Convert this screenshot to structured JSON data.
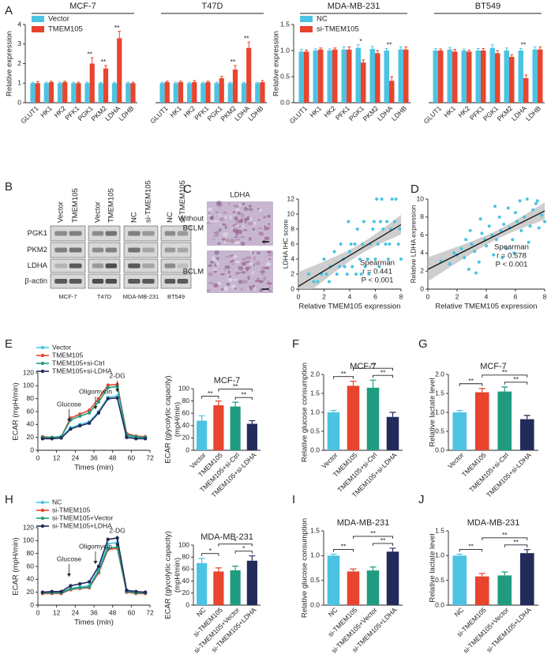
{
  "panel_labels": [
    "A",
    "B",
    "C",
    "D",
    "E",
    "F",
    "G",
    "H",
    "I",
    "J"
  ],
  "western_blot": {
    "columns": [
      "Vector",
      "TMEM105",
      "Vector",
      "TMEM105",
      "NC",
      "si-TMEM105",
      "NC",
      "si-TMEM105"
    ],
    "rows": [
      "PGK1",
      "PKM2",
      "LDHA",
      "β-actin"
    ],
    "cell_lines": [
      "MCF-7",
      "T47D",
      "MDA-MB-231",
      "BT549"
    ]
  },
  "ihc": {
    "title": "LDHA",
    "rows": [
      [
        "Without",
        "BCLM"
      ],
      [
        "BCLM"
      ]
    ]
  },
  "chart_data": [
    {
      "type": "bar",
      "group_labels": [
        "MCF-7",
        "T47D"
      ],
      "categories": [
        "GLUT1",
        "HK1",
        "HK2",
        "PFK1",
        "PGK1",
        "PKM2",
        "LDHA",
        "LDHB",
        "GLUT1",
        "HK1",
        "HK2",
        "PFK1",
        "PGK1",
        "PKM2",
        "LDHA",
        "LDHB"
      ],
      "ylabel": "Relative expression",
      "ylim": [
        0,
        4
      ],
      "yticks": [
        0,
        1,
        2,
        3,
        4
      ],
      "series": [
        {
          "name": "Vector",
          "color": "#4cc3e2",
          "values": [
            1,
            1,
            1,
            1,
            1,
            1,
            1,
            1,
            1,
            1,
            1,
            1,
            1,
            1,
            1,
            1
          ],
          "errors": [
            0.05,
            0.05,
            0.05,
            0.05,
            0.05,
            0.05,
            0.05,
            0.05,
            0.05,
            0.05,
            0.05,
            0.05,
            0.05,
            0.05,
            0.05,
            0.05
          ]
        },
        {
          "name": "TMEM105",
          "color": "#e8442e",
          "values": [
            1.0,
            1.05,
            1.05,
            1.0,
            2.0,
            1.75,
            3.3,
            1.0,
            1.05,
            1.05,
            1.05,
            1.05,
            1.25,
            1.7,
            2.8,
            1.05
          ],
          "errors": [
            0.08,
            0.05,
            0.05,
            0.05,
            0.3,
            0.15,
            0.35,
            0.05,
            0.05,
            0.05,
            0.08,
            0.05,
            0.1,
            0.2,
            0.3,
            0.08
          ]
        }
      ],
      "significance": [
        null,
        null,
        null,
        null,
        "**",
        "**",
        "**",
        null,
        null,
        null,
        null,
        null,
        null,
        "**",
        "**",
        null
      ]
    },
    {
      "type": "bar",
      "group_labels": [
        "MDA-MB-231",
        "BT549"
      ],
      "categories": [
        "GLUT1",
        "HK1",
        "HK2",
        "PFK1",
        "PGK1",
        "PKM2",
        "LDHA",
        "LDHB",
        "GLUT1",
        "HK1",
        "HK2",
        "PFK1",
        "PGK1",
        "PKM2",
        "LDHA",
        "LDHB"
      ],
      "ylabel": "Relative expression",
      "ylim": [
        0,
        1.5
      ],
      "yticks": [
        {
          "value": 0,
          "label": "0.0"
        },
        {
          "value": 0.5,
          "label": "0.5"
        },
        {
          "value": 1,
          "label": "1.0"
        },
        {
          "value": 1.5,
          "label": "1.5"
        }
      ],
      "series": [
        {
          "name": "NC",
          "color": "#4cc3e2",
          "values": [
            0.98,
            1.0,
            1.0,
            1.02,
            1.05,
            1.03,
            1.0,
            1.02,
            1.0,
            1.02,
            1.0,
            1.0,
            1.05,
            1.0,
            1.0,
            1.02
          ],
          "errors": [
            0.04,
            0.03,
            0.03,
            0.05,
            0.06,
            0.05,
            0.04,
            0.05,
            0.04,
            0.04,
            0.03,
            0.04,
            0.06,
            0.05,
            0.04,
            0.05
          ]
        },
        {
          "name": "si-TMEM105",
          "color": "#e8442e",
          "values": [
            0.98,
            1.02,
            1.02,
            1.02,
            0.77,
            0.95,
            0.42,
            1.02,
            1.0,
            0.98,
            0.98,
            1.0,
            0.95,
            0.88,
            0.47,
            1.02
          ],
          "errors": [
            0.03,
            0.03,
            0.03,
            0.05,
            0.05,
            0.05,
            0.08,
            0.05,
            0.03,
            0.04,
            0.03,
            0.04,
            0.05,
            0.04,
            0.06,
            0.05
          ]
        }
      ],
      "significance": [
        null,
        null,
        null,
        null,
        "*",
        null,
        "**",
        null,
        null,
        null,
        null,
        null,
        null,
        null,
        "**",
        null
      ]
    },
    {
      "type": "scatter",
      "xlabel": "Relative TMEM105 expression",
      "ylabel": "LDHA IHC score",
      "color": "#4cc3e2",
      "xlim": [
        0,
        8
      ],
      "xticks": [
        0,
        2,
        4,
        6,
        8
      ],
      "ylim": [
        0,
        12
      ],
      "yticks": [
        0,
        2,
        4,
        6,
        8,
        10,
        12
      ],
      "x": [
        1.8,
        2.2,
        2.5,
        3,
        3.2,
        3.5,
        3.8,
        4,
        4.2,
        4.5,
        4.8,
        5,
        5.2,
        5.5,
        5.8,
        6,
        6.2,
        6.4,
        6.5,
        6.8,
        7,
        7.2,
        7.5,
        7.8,
        8,
        2,
        2.8,
        3.3,
        3.6,
        4.1,
        4.6,
        5.1,
        5.6,
        6.1,
        6.6,
        7.1,
        7.6,
        1.5,
        2.4,
        3.9,
        5.4,
        6.3,
        7.3,
        4.4,
        5.9,
        0.8,
        1.2,
        6.9,
        7.9,
        4.9
      ],
      "values": [
        2,
        2,
        3,
        2,
        3,
        4,
        2,
        5,
        3,
        2,
        4,
        6,
        3,
        2,
        8,
        4,
        6,
        9,
        12,
        6,
        4,
        8,
        9,
        6,
        4,
        4,
        5,
        6,
        3,
        6,
        8,
        9,
        6,
        12,
        8,
        6,
        12,
        1,
        1,
        9,
        4,
        3,
        12,
        6,
        9,
        2,
        1,
        9,
        8,
        2
      ],
      "annotations": [
        "Spearman",
        "r = 0.441",
        "P < 0.001"
      ]
    },
    {
      "type": "scatter",
      "xlabel": "Relative TMEM105 expression",
      "ylabel": "Relative LDHA expression",
      "color": "#4cc3e2",
      "xlim": [
        0,
        8
      ],
      "xticks": [
        0,
        2,
        4,
        6,
        8
      ],
      "ylim": [
        0,
        10
      ],
      "yticks": [
        0,
        2,
        4,
        6,
        8,
        10
      ],
      "x": [
        0.9,
        1.5,
        2,
        2.3,
        2.5,
        2.8,
        3,
        3.2,
        3.5,
        3.7,
        3.9,
        4,
        4.2,
        4.4,
        4.5,
        4.7,
        4.9,
        5,
        5.2,
        5.4,
        5.5,
        5.6,
        5.8,
        6,
        6.1,
        6.3,
        6.4,
        6.6,
        6.8,
        7,
        7.2,
        7.4,
        7.6,
        7.8,
        8,
        1.8,
        2.6,
        3.3,
        4.6,
        5.9,
        6.9,
        7.5,
        3.6,
        5.1,
        2.9
      ],
      "values": [
        3.1,
        2.8,
        3.8,
        4.5,
        3.5,
        2.2,
        5,
        4.2,
        3,
        6.2,
        5.5,
        4.8,
        7,
        6,
        3.8,
        5.5,
        8,
        6.5,
        7.2,
        4.5,
        9,
        6.8,
        5.5,
        8.5,
        7.5,
        9.8,
        6.5,
        8,
        10,
        7,
        8.8,
        9.5,
        6.8,
        8.2,
        7.5,
        4,
        5.5,
        1.8,
        9.2,
        4,
        5.2,
        9.8,
        7.8,
        3.5,
        6.5
      ],
      "annotations": [
        "Spearman",
        "r = 0.578",
        "P < 0.001"
      ]
    },
    {
      "type": "line",
      "xlabel": "Times (min)",
      "ylabel": "ECAR (mpH/min)",
      "xlim": [
        0,
        72
      ],
      "xticks": [
        0,
        12,
        24,
        36,
        48,
        60,
        72
      ],
      "ylim": [
        0,
        120
      ],
      "yticks": [
        0,
        20,
        40,
        60,
        80,
        100,
        120
      ],
      "x": [
        3,
        9,
        15,
        21,
        27,
        33,
        39,
        45,
        51,
        57,
        63,
        69
      ],
      "series": [
        {
          "name": "Vector",
          "color": "#4cc3e2",
          "values": [
            20,
            19,
            20,
            35,
            40,
            44,
            60,
            82,
            84,
            22,
            20,
            19
          ]
        },
        {
          "name": "TMEM105",
          "color": "#e8442e",
          "values": [
            21,
            20,
            21,
            50,
            56,
            62,
            80,
            101,
            102,
            26,
            22,
            21
          ]
        },
        {
          "name": "TMEM105+si-Ctrl",
          "color": "#1f9c7f",
          "values": [
            20,
            20,
            21,
            47,
            53,
            58,
            75,
            97,
            99,
            24,
            21,
            20
          ]
        },
        {
          "name": "TMEM105+si-LDHA",
          "color": "#232b5c",
          "values": [
            18,
            18,
            19,
            33,
            38,
            42,
            58,
            80,
            81,
            20,
            18,
            18
          ]
        }
      ],
      "annotations": [
        "Glucose",
        "Oligomycin",
        "2-DG"
      ]
    },
    {
      "type": "bar",
      "title": "MCF-7",
      "ylabel": [
        "ECAR (glycolytic capacity)",
        "(mpH/min)"
      ],
      "categories": [
        "Vector",
        "TMEM105",
        "TMEM105+si-Ctrl",
        "TMEM105+si-LDHA"
      ],
      "values": [
        48,
        73,
        71,
        43
      ],
      "errors": [
        8,
        7,
        7,
        5
      ],
      "colors": [
        "#4cc3e2",
        "#e8442e",
        "#1f9c7f",
        "#232b5c"
      ],
      "ylim": [
        0,
        100
      ],
      "yticks": [
        0,
        20,
        40,
        60,
        80,
        100
      ],
      "significance": [
        "**",
        "**",
        "**"
      ]
    },
    {
      "type": "bar",
      "title": "MCF-7",
      "ylabel": "Relative glucose consumption",
      "categories": [
        "Vector",
        "TMEM105",
        "TMEM105+si-Ctrl",
        "TMEM105+si-LDHA"
      ],
      "values": [
        1.0,
        1.7,
        1.65,
        0.88
      ],
      "errors": [
        0.05,
        0.12,
        0.2,
        0.12
      ],
      "colors": [
        "#4cc3e2",
        "#e8442e",
        "#1f9c7f",
        "#232b5c"
      ],
      "ylim": [
        0,
        2
      ],
      "yticks": [
        {
          "value": 0,
          "label": "0.0"
        },
        {
          "value": 0.5,
          "label": "0.5"
        },
        {
          "value": 1,
          "label": "1.0"
        },
        {
          "value": 1.5,
          "label": "1.5"
        },
        {
          "value": 2,
          "label": "2.0"
        }
      ],
      "significance": [
        "**",
        "**",
        "**"
      ]
    },
    {
      "type": "bar",
      "title": "MCF-7",
      "ylabel": "Relative lactate level",
      "categories": [
        "Vector",
        "TMEM105",
        "TMEM105+si-Ctrl",
        "TMEM105+si-LDHA"
      ],
      "values": [
        1.0,
        1.53,
        1.55,
        0.82
      ],
      "errors": [
        0.05,
        0.1,
        0.12,
        0.1
      ],
      "colors": [
        "#4cc3e2",
        "#e8442e",
        "#1f9c7f",
        "#232b5c"
      ],
      "ylim": [
        0,
        2
      ],
      "yticks": [
        {
          "value": 0,
          "label": "0.0"
        },
        {
          "value": 0.5,
          "label": "0.5"
        },
        {
          "value": 1,
          "label": "1.0"
        },
        {
          "value": 1.5,
          "label": "1.5"
        },
        {
          "value": 2,
          "label": "2.0"
        }
      ],
      "significance": [
        "**",
        "**",
        "**"
      ]
    },
    {
      "type": "line",
      "xlabel": "Times (min)",
      "ylabel": "ECAR (mpH/min)",
      "xlim": [
        0,
        72
      ],
      "xticks": [
        0,
        12,
        24,
        36,
        48,
        60,
        72
      ],
      "ylim": [
        0,
        120
      ],
      "yticks": [
        0,
        20,
        40,
        60,
        80,
        100,
        120
      ],
      "x": [
        3,
        9,
        15,
        21,
        27,
        33,
        39,
        45,
        51,
        57,
        63,
        69
      ],
      "series": [
        {
          "name": "NC",
          "color": "#4cc3e2",
          "values": [
            20,
            20,
            20,
            26,
            28,
            30,
            55,
            95,
            97,
            22,
            20,
            20
          ]
        },
        {
          "name": "si-TMEM105",
          "color": "#e8442e",
          "values": [
            18,
            18,
            18,
            24,
            26,
            27,
            50,
            86,
            88,
            20,
            18,
            18
          ]
        },
        {
          "name": "si-TMEM105+Vector",
          "color": "#1f9c7f",
          "values": [
            19,
            19,
            19,
            25,
            27,
            28,
            52,
            88,
            90,
            21,
            19,
            19
          ]
        },
        {
          "name": "si-TMEM105+LDHA",
          "color": "#232b5c",
          "values": [
            20,
            21,
            21,
            30,
            33,
            36,
            60,
            102,
            104,
            23,
            21,
            20
          ]
        }
      ],
      "annotations": [
        "Glucose",
        "Oligomycin",
        "2-DG"
      ]
    },
    {
      "type": "bar",
      "title": "MDA-MB-231",
      "ylabel": [
        "ECAR (glycolytic capacity)",
        "(mpH/min)"
      ],
      "categories": [
        "NC",
        "si-TMEM105",
        "si-TMEM105+Vector",
        "si-TMEM105+LDHA"
      ],
      "values": [
        70,
        56,
        58,
        74
      ],
      "errors": [
        8,
        6,
        7,
        8
      ],
      "colors": [
        "#4cc3e2",
        "#e8442e",
        "#1f9c7f",
        "#232b5c"
      ],
      "ylim": [
        0,
        100
      ],
      "yticks": [
        0,
        20,
        40,
        60,
        80,
        100
      ],
      "significance": [
        "*",
        "*",
        "*"
      ]
    },
    {
      "type": "bar",
      "title": "MDA-MB-231",
      "ylabel": "Relative glucose consumption",
      "categories": [
        "NC",
        "si-TMEM105",
        "si-TMEM105+Vector",
        "si-TMEM105+LDHA"
      ],
      "values": [
        1.0,
        0.68,
        0.7,
        1.08
      ],
      "errors": [
        0.03,
        0.05,
        0.07,
        0.07
      ],
      "colors": [
        "#4cc3e2",
        "#e8442e",
        "#1f9c7f",
        "#232b5c"
      ],
      "ylim": [
        0,
        1.5
      ],
      "yticks": [
        {
          "value": 0,
          "label": "0.0"
        },
        {
          "value": 0.5,
          "label": "0.5"
        },
        {
          "value": 1,
          "label": "1.0"
        },
        {
          "value": 1.5,
          "label": "1.5"
        }
      ],
      "significance": [
        "**",
        "**",
        "**"
      ]
    },
    {
      "type": "bar",
      "title": "MDA-MB-231",
      "ylabel": "Relative lactate level",
      "categories": [
        "NC",
        "si-TMEM105",
        "si-TMEM105+Vector",
        "si-TMEM105+LDHA"
      ],
      "values": [
        1.0,
        0.58,
        0.6,
        1.05
      ],
      "errors": [
        0.03,
        0.06,
        0.07,
        0.07
      ],
      "colors": [
        "#4cc3e2",
        "#e8442e",
        "#1f9c7f",
        "#232b5c"
      ],
      "ylim": [
        0,
        1.5
      ],
      "yticks": [
        {
          "value": 0,
          "label": "0.0"
        },
        {
          "value": 0.5,
          "label": "0.5"
        },
        {
          "value": 1,
          "label": "1.0"
        },
        {
          "value": 1.5,
          "label": "1.5"
        }
      ],
      "significance": [
        "**",
        "**",
        "**"
      ]
    }
  ]
}
